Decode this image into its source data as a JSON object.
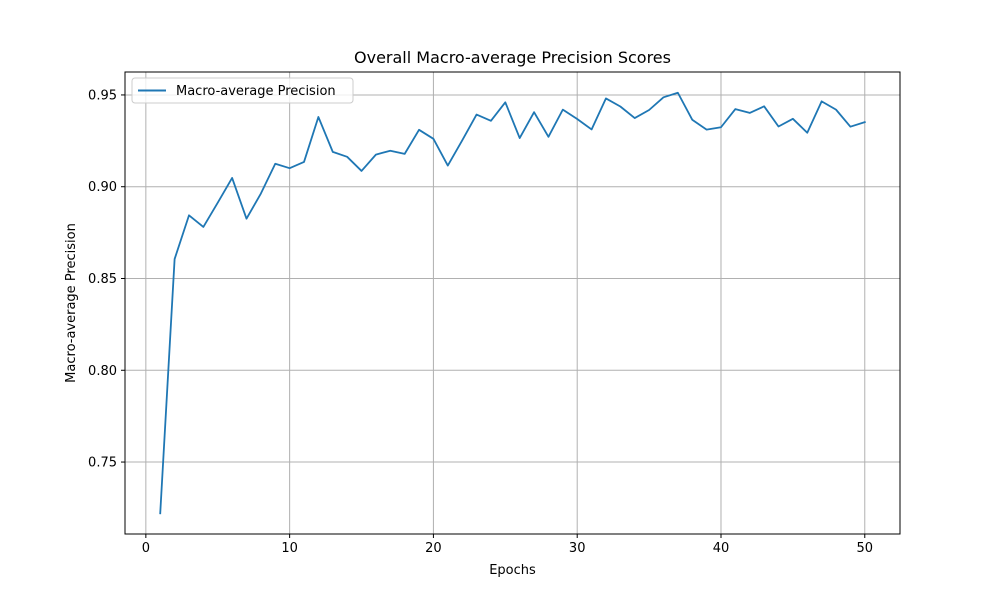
{
  "chart_data": {
    "type": "line",
    "title": "Overall Macro-average Precision Scores",
    "xlabel": "Epochs",
    "ylabel": "Macro-average Precision",
    "xlim": [
      -1.45,
      52.45
    ],
    "ylim": [
      0.7108,
      0.9625
    ],
    "xticks": [
      0,
      10,
      20,
      30,
      40,
      50
    ],
    "yticks": [
      0.75,
      0.8,
      0.85,
      0.9,
      0.95
    ],
    "xtick_labels": [
      "0",
      "10",
      "20",
      "30",
      "40",
      "50"
    ],
    "ytick_labels": [
      "0.75",
      "0.80",
      "0.85",
      "0.90",
      "0.95"
    ],
    "grid": true,
    "legend_position": "upper-left",
    "line_color": "#1f77b4",
    "x": [
      1,
      2,
      3,
      4,
      5,
      6,
      7,
      8,
      9,
      10,
      11,
      12,
      13,
      14,
      15,
      16,
      17,
      18,
      19,
      20,
      21,
      22,
      23,
      24,
      25,
      26,
      27,
      28,
      29,
      30,
      31,
      32,
      33,
      34,
      35,
      36,
      37,
      38,
      39,
      40,
      41,
      42,
      43,
      44,
      45,
      46,
      47,
      48,
      49,
      50
    ],
    "series": [
      {
        "name": "Macro-average Precision",
        "values": [
          0.7221,
          0.8606,
          0.8844,
          0.8781,
          0.8913,
          0.9048,
          0.8826,
          0.8963,
          0.9125,
          0.9101,
          0.9135,
          0.938,
          0.919,
          0.9163,
          0.9086,
          0.9175,
          0.9196,
          0.9179,
          0.931,
          0.9261,
          0.9115,
          0.9252,
          0.9393,
          0.9359,
          0.946,
          0.9265,
          0.9406,
          0.9272,
          0.942,
          0.9369,
          0.9312,
          0.9481,
          0.9437,
          0.9374,
          0.9418,
          0.9487,
          0.9512,
          0.9365,
          0.9311,
          0.9324,
          0.9423,
          0.9402,
          0.9438,
          0.9328,
          0.937,
          0.9294,
          0.9465,
          0.942,
          0.9327,
          0.9352
        ]
      }
    ]
  }
}
